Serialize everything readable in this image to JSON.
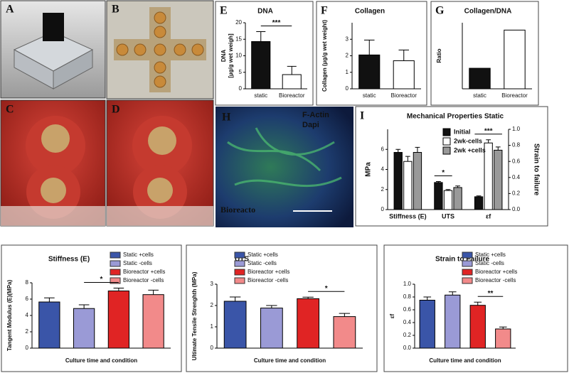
{
  "photo_panels": [
    {
      "label": "A"
    },
    {
      "label": "B"
    },
    {
      "label": "C"
    },
    {
      "label": "D"
    },
    {
      "label": "H",
      "texts": [
        "F-Actin",
        "Dapi",
        "Bioreacto"
      ]
    }
  ],
  "chart_data": [
    {
      "type": "bar",
      "panel": "E",
      "title": "DNA",
      "ylabel": [
        "DNA",
        "[µg/g wet weigh]"
      ],
      "categories": [
        "static",
        "Bioreactor"
      ],
      "values": [
        14.3,
        4.3
      ],
      "errors": [
        3.0,
        2.5
      ],
      "colors": [
        "#111111",
        "#ffffff"
      ],
      "ylim": [
        0,
        20
      ],
      "yticks": [
        0,
        5,
        10,
        15,
        20
      ],
      "annotations": [
        {
          "text": "***",
          "between": [
            0,
            1
          ]
        }
      ]
    },
    {
      "type": "bar",
      "panel": "F",
      "title": "Collagen",
      "ylabel": [
        "Collagen (µg/g wet weight)"
      ],
      "categories": [
        "static",
        "Bioreactor"
      ],
      "values": [
        2.05,
        1.7
      ],
      "errors": [
        0.9,
        0.65
      ],
      "colors": [
        "#111111",
        "#ffffff"
      ],
      "ylim": [
        0,
        4
      ],
      "yticks": [
        0,
        1,
        2,
        3
      ]
    },
    {
      "type": "bar",
      "panel": "G",
      "title": "Collagen/DNA",
      "ylabel": [
        "Ratio"
      ],
      "categories": [
        "static",
        "Bioreactor"
      ],
      "values": [
        0.14,
        0.4
      ],
      "colors": [
        "#111111",
        "#ffffff"
      ],
      "ylim": [
        0,
        0.45
      ],
      "yticks": []
    },
    {
      "type": "grouped_bar",
      "panel": "I",
      "title": "Mechanical Properties Static",
      "categories": [
        "Stiffness (E)",
        "UTS",
        "εf"
      ],
      "category_axes": [
        "y",
        "y",
        "y2"
      ],
      "series": [
        {
          "name": "Initial",
          "color": "#111111",
          "values": [
            5.7,
            2.7,
            0.16
          ],
          "errors": [
            0.3,
            0.1,
            0.01
          ]
        },
        {
          "name": "2wk-cells",
          "color": "#ffffff",
          "values": [
            4.8,
            1.9,
            0.83
          ],
          "errors": [
            0.5,
            0.1,
            0.04
          ]
        },
        {
          "name": "2wk +cells",
          "color": "#999999",
          "values": [
            5.7,
            2.2,
            0.74
          ],
          "errors": [
            0.5,
            0.15,
            0.04
          ]
        }
      ],
      "ylabel": [
        "MPa"
      ],
      "ylim": [
        0,
        8
      ],
      "yticks": [
        0,
        2,
        4,
        6
      ],
      "y2label": "Strain to failure",
      "y2lim": [
        0,
        1
      ],
      "y2ticks": [
        {
          "value": 0,
          "label": "0.0"
        },
        0.2,
        0.4,
        0.6,
        0.8,
        {
          "value": 1,
          "label": "1.0"
        }
      ],
      "annotations": [
        {
          "text": "*",
          "category": 1,
          "series": [
            0,
            1
          ]
        },
        {
          "text": "***",
          "category": 2,
          "series": [
            0,
            2
          ]
        }
      ],
      "legend": "top-center"
    },
    {
      "type": "bar",
      "title": "Stiffness (E)",
      "ylabel": [
        "Tangent Modulus (E)(MPa)"
      ],
      "xlabel": "Culture time and condition",
      "categories": [
        "Static +cells",
        "Static -cells",
        "Bioreactor +cells",
        "Bioreactor -cells"
      ],
      "values": [
        5.65,
        4.85,
        7.0,
        6.55
      ],
      "errors": [
        0.5,
        0.45,
        0.35,
        0.55
      ],
      "colors": [
        "#3a55a8",
        "#9a9ad6",
        "#e02424",
        "#f28a8a"
      ],
      "ylim": [
        0,
        8
      ],
      "yticks": [
        0,
        2,
        4,
        6,
        8
      ],
      "annotations": [
        {
          "text": "*",
          "between": [
            1,
            2
          ]
        }
      ],
      "legend": "top-right"
    },
    {
      "type": "bar",
      "title": "UTS",
      "ylabel": [
        "Ultimate Tensile Strenghth (MPa)"
      ],
      "xlabel": "Culture time and condition",
      "categories": [
        "Static +cells",
        "Static -cells",
        "Bioreactor +cells",
        "Bioreactor -cells"
      ],
      "values": [
        2.2,
        1.88,
        2.32,
        1.48
      ],
      "errors": [
        0.2,
        0.12,
        0.07,
        0.15
      ],
      "colors": [
        "#3a55a8",
        "#9a9ad6",
        "#e02424",
        "#f28a8a"
      ],
      "ylim": [
        0,
        3
      ],
      "yticks": [
        0,
        1,
        2,
        3
      ],
      "annotations": [
        {
          "text": "*",
          "between": [
            2,
            3
          ]
        }
      ],
      "legend": "top-right"
    },
    {
      "type": "bar",
      "title": "Strain to Failure",
      "ylabel": [
        "εf"
      ],
      "xlabel": "Culture time and condition",
      "categories": [
        "Static +cells",
        "Static -cells",
        "Bioreactor +cells",
        "Bioreactor -cells"
      ],
      "values": [
        0.75,
        0.83,
        0.67,
        0.3
      ],
      "errors": [
        0.05,
        0.05,
        0.05,
        0.03
      ],
      "colors": [
        "#3a55a8",
        "#9a9ad6",
        "#e02424",
        "#f28a8a"
      ],
      "ylim": [
        0,
        1
      ],
      "yticks": [
        {
          "value": 0,
          "label": "0.0"
        },
        0.2,
        0.4,
        0.6,
        0.8,
        {
          "value": 1,
          "label": "1.0"
        }
      ],
      "annotations": [
        {
          "text": "**",
          "between": [
            2,
            3
          ]
        }
      ],
      "legend": "top-right"
    }
  ]
}
